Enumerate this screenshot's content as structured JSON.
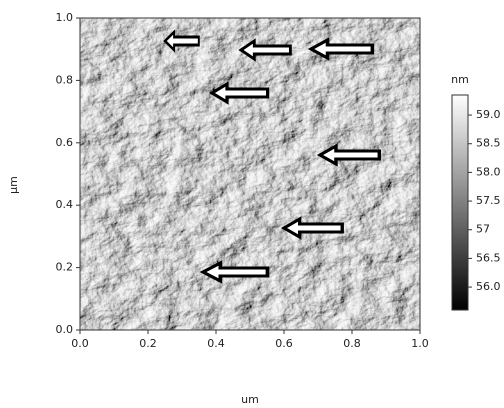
{
  "chart_data": {
    "type": "heatmap",
    "x_label": "um",
    "y_label": "µm",
    "colorbar_label": "nm",
    "xlim": [
      0,
      1
    ],
    "ylim": [
      0,
      1
    ],
    "xticks": [
      {
        "value": 0,
        "label": "0.0"
      },
      {
        "value": 0.2,
        "label": "0.2"
      },
      {
        "value": 0.4,
        "label": "0.4"
      },
      {
        "value": 0.6,
        "label": "0.6"
      },
      {
        "value": 0.8,
        "label": "0.8"
      },
      {
        "value": 1,
        "label": "1.0"
      }
    ],
    "yticks": [
      {
        "value": 0,
        "label": "0.0"
      },
      {
        "value": 0.2,
        "label": "0.2"
      },
      {
        "value": 0.4,
        "label": "0.4"
      },
      {
        "value": 0.6,
        "label": "0.6"
      },
      {
        "value": 0.8,
        "label": "0.8"
      },
      {
        "value": 1,
        "label": "1.0"
      }
    ],
    "clim": [
      55.6,
      59.35
    ],
    "cticks": [
      {
        "value": 56,
        "label": "56.0"
      },
      56.5,
      57,
      57.5,
      {
        "value": 58,
        "label": "58.0"
      },
      58.5,
      {
        "value": 59,
        "label": "59.0"
      }
    ]
  }
}
